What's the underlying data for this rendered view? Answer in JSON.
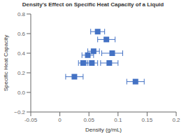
{
  "chart_data": {
    "type": "scatter",
    "title": "Density's Effect on Specific Heat Capacity of a Liquid",
    "xlabel": "Density (g/mL)",
    "ylabel": "Specific Heat Capacity",
    "x": [
      0.065,
      0.08,
      0.058,
      0.09,
      0.048,
      0.04,
      0.055,
      0.085,
      0.025,
      0.13
    ],
    "values": [
      0.62,
      0.54,
      0.42,
      0.4,
      0.38,
      0.3,
      0.3,
      0.3,
      0.16,
      0.11
    ],
    "xerr": [
      0.012,
      0.015,
      0.01,
      0.018,
      0.01,
      0.008,
      0.01,
      0.015,
      0.015,
      0.015
    ],
    "xlim": [
      -0.05,
      0.2
    ],
    "ylim": [
      -0.2,
      0.8
    ],
    "xticks": [
      -0.05,
      0,
      0.05,
      0.1,
      0.15,
      0.2
    ],
    "yticks": [
      {
        "value": -0.2,
        "label": "−0.2"
      },
      {
        "value": 0,
        "label": "0.0"
      },
      0.2,
      0.4,
      0.6,
      0.8
    ],
    "color": "#4472C4",
    "marker": "square",
    "grid": false
  }
}
